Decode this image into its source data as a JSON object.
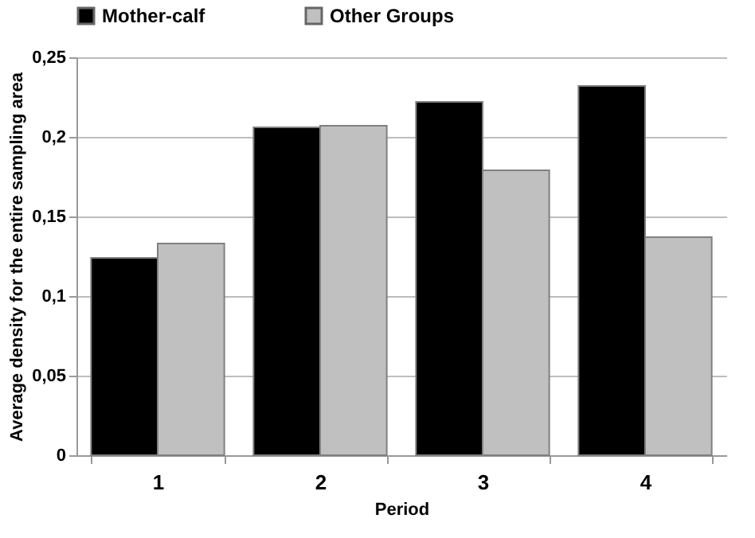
{
  "chart_data": {
    "type": "bar",
    "xlabel": "Period",
    "ylabel": "Average density for the entire sampling  area",
    "categories": [
      "1",
      "2",
      "3",
      "4"
    ],
    "series": [
      {
        "name": "Mother-calf",
        "color": "#000000",
        "values": [
          0.124,
          0.206,
          0.222,
          0.232
        ]
      },
      {
        "name": "Other Groups",
        "color": "#c0c0c0",
        "values": [
          0.133,
          0.207,
          0.179,
          0.137
        ]
      }
    ],
    "ylim": [
      0,
      0.25
    ],
    "yticks": [
      {
        "value": 0,
        "label": "0"
      },
      {
        "value": 0.05,
        "label": "0,05"
      },
      {
        "value": 0.1,
        "label": "0,1"
      },
      {
        "value": 0.15,
        "label": "0,15"
      },
      {
        "value": 0.2,
        "label": "0,2"
      },
      {
        "value": 0.25,
        "label": "0,25"
      }
    ],
    "grid": "y",
    "legend": "top"
  }
}
